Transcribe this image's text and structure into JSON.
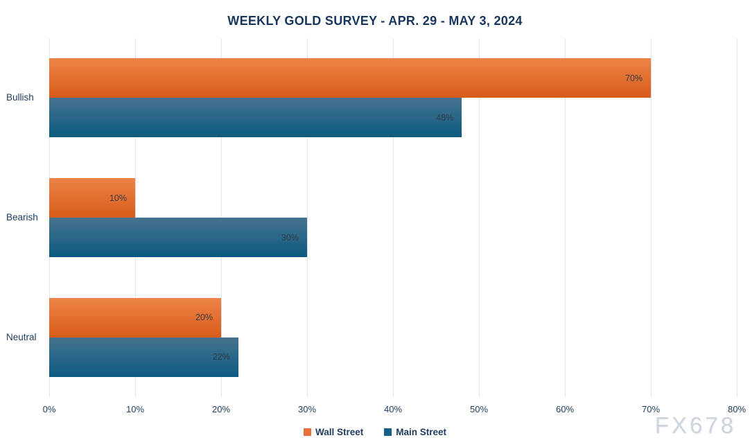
{
  "watermark": "FX678",
  "chart_data": {
    "type": "bar",
    "orientation": "horizontal",
    "title": "WEEKLY GOLD SURVEY - APR. 29 - MAY 3, 2024",
    "categories": [
      "Bullish",
      "Bearish",
      "Neutral"
    ],
    "series": [
      {
        "name": "Wall Street",
        "values": [
          70,
          10,
          20
        ],
        "color_top": "#ED8447",
        "color_bottom": "#D85B1A",
        "legend_color": "#E8703A"
      },
      {
        "name": "Main Street",
        "values": [
          48,
          30,
          22
        ],
        "color_top": "#47738F",
        "color_bottom": "#0B5A80",
        "legend_color": "#176087"
      }
    ],
    "xlim": [
      0,
      80
    ],
    "xticks": [
      0,
      10,
      20,
      30,
      40,
      50,
      60,
      70,
      80
    ],
    "tick_suffix": "%",
    "value_suffix": "%",
    "grid": "vertical",
    "legend_position": "bottom",
    "colors": {
      "grid": "#DCE6F1",
      "title_text": "#17365D",
      "axis_text": "#1F3A5C",
      "bar_label_text": "#333B44",
      "watermark_text": "#CDD4DD",
      "background": "#FFFFFF"
    }
  }
}
